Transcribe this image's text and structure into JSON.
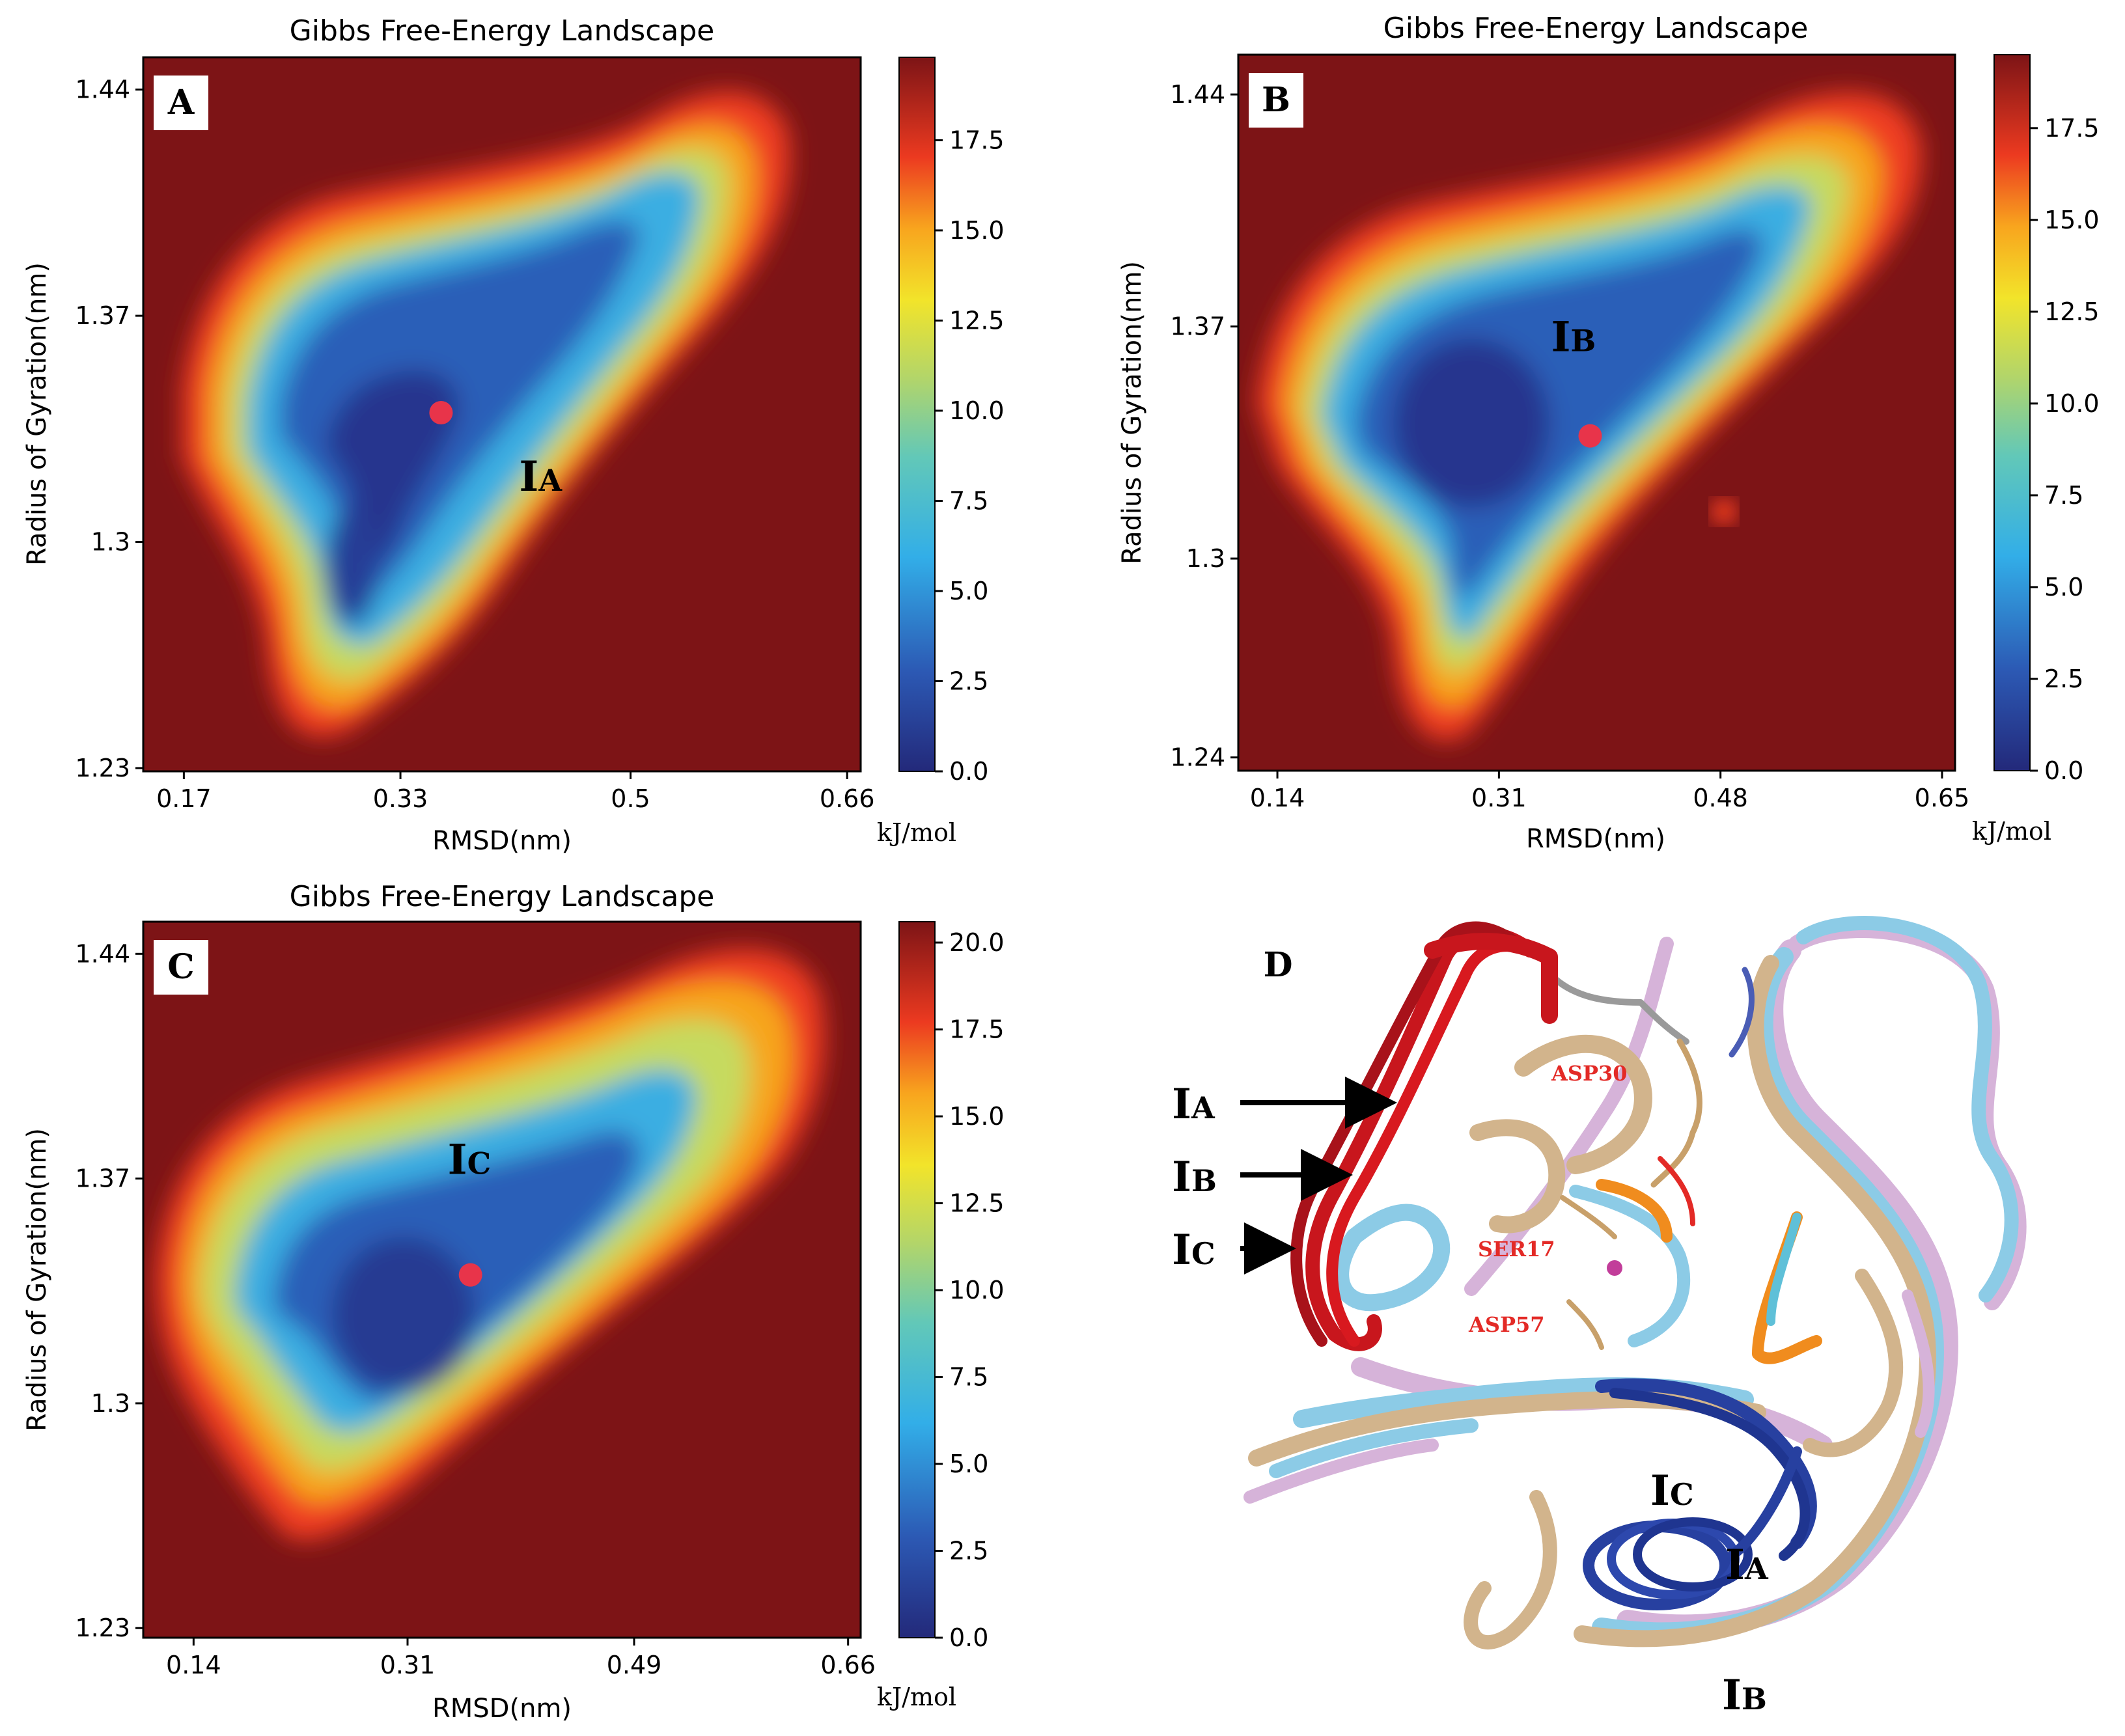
{
  "chart_data": [
    {
      "panel": "A",
      "type": "heatmap",
      "title": "Gibbs Free-Energy Landscape",
      "xlabel": "RMSD(nm)",
      "ylabel": "Radius of Gyration(nm)",
      "xticks": [
        "0.17",
        "0.33",
        "0.5",
        "0.66"
      ],
      "yticks": [
        "1.23",
        "1.3",
        "1.37",
        "1.44"
      ],
      "xlim": [
        0.14,
        0.67
      ],
      "ylim": [
        1.229,
        1.45
      ],
      "colorbar": {
        "label": "kJ/mol",
        "ticks": [
          "0.0",
          "2.5",
          "5.0",
          "7.5",
          "10.0",
          "12.5",
          "15.0",
          "17.5"
        ],
        "range": [
          0,
          19.8
        ]
      },
      "minimum": {
        "label": "IA",
        "label_main": "I",
        "label_sub": "A",
        "x": 0.36,
        "y": 1.34
      }
    },
    {
      "panel": "B",
      "type": "heatmap",
      "title": "Gibbs Free-Energy Landscape",
      "xlabel": "RMSD(nm)",
      "ylabel": "Radius of Gyration(nm)",
      "xticks": [
        "0.14",
        "0.31",
        "0.48",
        "0.65"
      ],
      "yticks": [
        "1.24",
        "1.3",
        "1.37",
        "1.44"
      ],
      "xlim": [
        0.11,
        0.66
      ],
      "ylim": [
        1.236,
        1.452
      ],
      "colorbar": {
        "label": "kJ/mol",
        "ticks": [
          "0.0",
          "2.5",
          "5.0",
          "7.5",
          "10.0",
          "12.5",
          "15.0",
          "17.5"
        ],
        "range": [
          0,
          19.5
        ]
      },
      "minimum": {
        "label": "IB",
        "label_main": "I",
        "label_sub": "B",
        "x": 0.38,
        "y": 1.337
      }
    },
    {
      "panel": "C",
      "type": "heatmap",
      "title": "Gibbs Free-Energy Landscape",
      "xlabel": "RMSD(nm)",
      "ylabel": "Radius of Gyration(nm)",
      "xticks": [
        "0.14",
        "0.31",
        "0.49",
        "0.66"
      ],
      "yticks": [
        "1.23",
        "1.3",
        "1.37",
        "1.44"
      ],
      "xlim": [
        0.1,
        0.67
      ],
      "ylim": [
        1.227,
        1.45
      ],
      "colorbar": {
        "label": "kJ/mol",
        "ticks": [
          "0.0",
          "2.5",
          "5.0",
          "7.5",
          "10.0",
          "12.5",
          "15.0",
          "17.5",
          "20.0"
        ],
        "range": [
          0,
          20.6
        ]
      },
      "minimum": {
        "label": "IC",
        "label_main": "I",
        "label_sub": "C",
        "x": 0.36,
        "y": 1.34
      }
    }
  ],
  "panel_d": {
    "label": "D",
    "arrows": [
      {
        "main": "I",
        "sub": "A"
      },
      {
        "main": "I",
        "sub": "B"
      },
      {
        "main": "I",
        "sub": "C"
      }
    ],
    "loop_labels": [
      {
        "main": "I",
        "sub": "C"
      },
      {
        "main": "I",
        "sub": "A"
      },
      {
        "main": "I",
        "sub": "B"
      }
    ],
    "residues": [
      "ASP30",
      "SER17",
      "ASP57"
    ],
    "colors": {
      "loop_red": "#c8161d",
      "loop_blue": "#2740a0",
      "ribbon_tan": "#d2b48c",
      "ribbon_cyan": "#8ccbe6",
      "ribbon_pink": "#d6b3d9",
      "phosphate_orange": "#f08c1e",
      "residue_red": "#e32a26"
    }
  }
}
